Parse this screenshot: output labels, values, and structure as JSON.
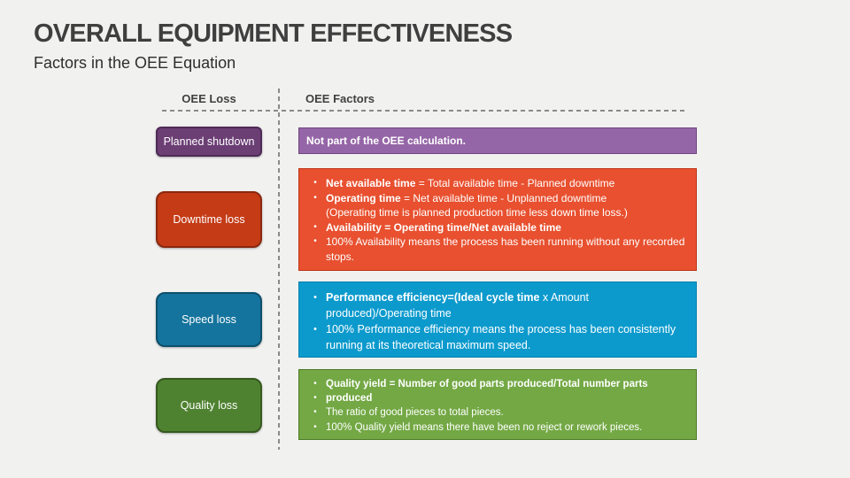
{
  "slide": {
    "title": "OVERALL EQUIPMENT EFFECTIVENESS",
    "subtitle": "Factors in the OEE Equation",
    "columns": {
      "loss": "OEE Loss",
      "factors": "OEE Factors"
    }
  },
  "colors": {
    "background": "#F1F1F0",
    "title_text": "#3F3F3F",
    "divider": "#8A8A8A",
    "box_text": "#FFFFFF"
  },
  "rows": [
    {
      "name": "planned-shutdown",
      "loss_label": "Planned shutdown",
      "loss_fill": "#6B3E74",
      "loss_border": "#4E2B56",
      "factor_fill": "#9566A7",
      "factor_border": "#70457F",
      "factor_lines": [
        {
          "bullet": false,
          "flush": true,
          "segments": [
            {
              "text": "Not part of the OEE calculation.",
              "bold": true
            }
          ]
        }
      ]
    },
    {
      "name": "downtime-loss",
      "loss_label": "Downtime loss",
      "loss_fill": "#C43B16",
      "loss_border": "#8A2810",
      "factor_fill": "#E8502F",
      "factor_border": "#BE3517",
      "factor_lines": [
        {
          "bullet": true,
          "segments": [
            {
              "text": "Net available time",
              "bold": true
            },
            {
              "text": " = Total available time - Planned downtime",
              "bold": false
            }
          ]
        },
        {
          "bullet": true,
          "segments": [
            {
              "text": "Operating time",
              "bold": true
            },
            {
              "text": " = Net available time - Unplanned downtime",
              "bold": false
            }
          ]
        },
        {
          "bullet": false,
          "segments": [
            {
              "text": "(Operating time is planned production time less down time loss.)",
              "bold": false
            }
          ]
        },
        {
          "bullet": true,
          "segments": [
            {
              "text": "Availability = Operating time/Net available time",
              "bold": true
            }
          ]
        },
        {
          "bullet": true,
          "segments": [
            {
              "text": "100% Availability means the process has been running without any recorded stops.",
              "bold": false
            }
          ]
        }
      ]
    },
    {
      "name": "speed-loss",
      "loss_label": "Speed loss",
      "loss_fill": "#15749D",
      "loss_border": "#0D4F6C",
      "factor_fill": "#0C9ACD",
      "factor_border": "#0A81AD",
      "factor_lines": [
        {
          "bullet": true,
          "segments": [
            {
              "text": "Performance efficiency=(Ideal cycle time",
              "bold": true
            },
            {
              "text": " x Amount produced)/Operating time",
              "bold": false
            }
          ]
        },
        {
          "bullet": true,
          "segments": [
            {
              "text": " 100% Performance efficiency means the process has been consistently running at its theoretical maximum speed.",
              "bold": false
            }
          ]
        }
      ]
    },
    {
      "name": "quality-loss",
      "loss_label": "Quality loss",
      "loss_fill": "#4F8230",
      "loss_border": "#36591F",
      "factor_fill": "#73A844",
      "factor_border": "#4E7A28",
      "factor_lines": [
        {
          "bullet": true,
          "segments": [
            {
              "text": "Quality yield = Number of good parts produced/Total number parts",
              "bold": true
            }
          ]
        },
        {
          "bullet": true,
          "segments": [
            {
              "text": "produced",
              "bold": true
            }
          ]
        },
        {
          "bullet": true,
          "segments": [
            {
              "text": "The ratio of good pieces to total pieces.",
              "bold": false
            }
          ]
        },
        {
          "bullet": true,
          "segments": [
            {
              "text": "100% Quality yield means there have been no reject or rework pieces.",
              "bold": false
            }
          ]
        }
      ]
    }
  ]
}
